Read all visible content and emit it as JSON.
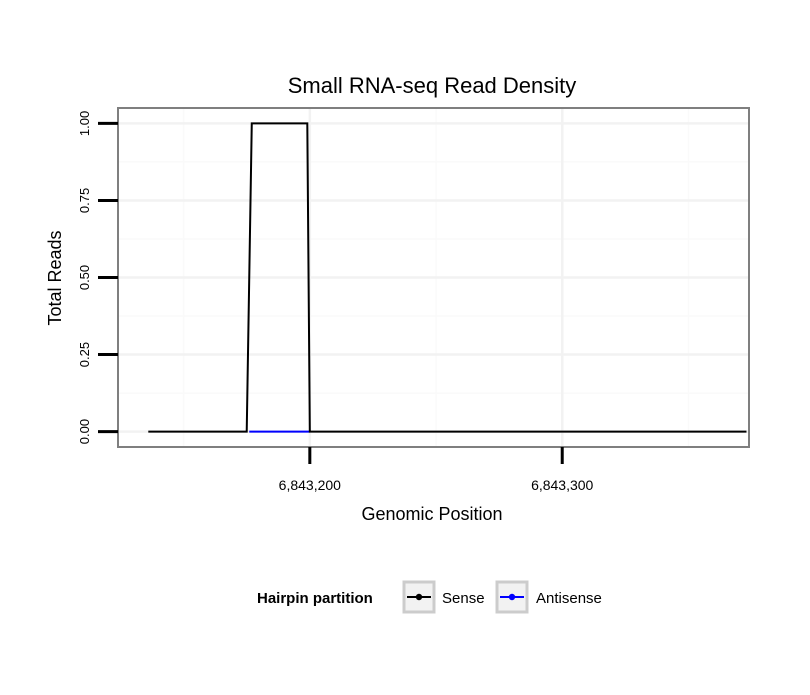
{
  "chart_data": {
    "type": "line",
    "title": "Small RNA-seq Read Density",
    "xlabel": "Genomic Position",
    "ylabel": "Total Reads",
    "xlim": [
      6843124,
      6843374
    ],
    "ylim": [
      -0.05,
      1.05
    ],
    "x_ticks": [
      {
        "value": 6843200,
        "label": "6,843,200"
      },
      {
        "value": 6843300,
        "label": "6,843,300"
      }
    ],
    "y_ticks": [
      {
        "value": 0.0,
        "label": "0.00"
      },
      {
        "value": 0.25,
        "label": "0.25"
      },
      {
        "value": 0.5,
        "label": "0.50"
      },
      {
        "value": 0.75,
        "label": "0.75"
      },
      {
        "value": 1.0,
        "label": "1.00"
      }
    ],
    "x_minor_grid": [
      6843150,
      6843250,
      6843350
    ],
    "y_minor_grid": [
      0.125,
      0.375,
      0.625,
      0.875
    ],
    "grid": true,
    "legend": {
      "title": "Hairpin partition",
      "position": "bottom"
    },
    "series": [
      {
        "name": "Sense",
        "color": "#000000",
        "x": [
          6843136,
          6843175,
          6843177,
          6843199,
          6843200,
          6843373
        ],
        "y": [
          0,
          0,
          1,
          1,
          0,
          0
        ]
      },
      {
        "name": "Antisense",
        "color": "#0000ff",
        "x": [
          6843176,
          6843200
        ],
        "y": [
          0,
          0
        ]
      }
    ]
  }
}
